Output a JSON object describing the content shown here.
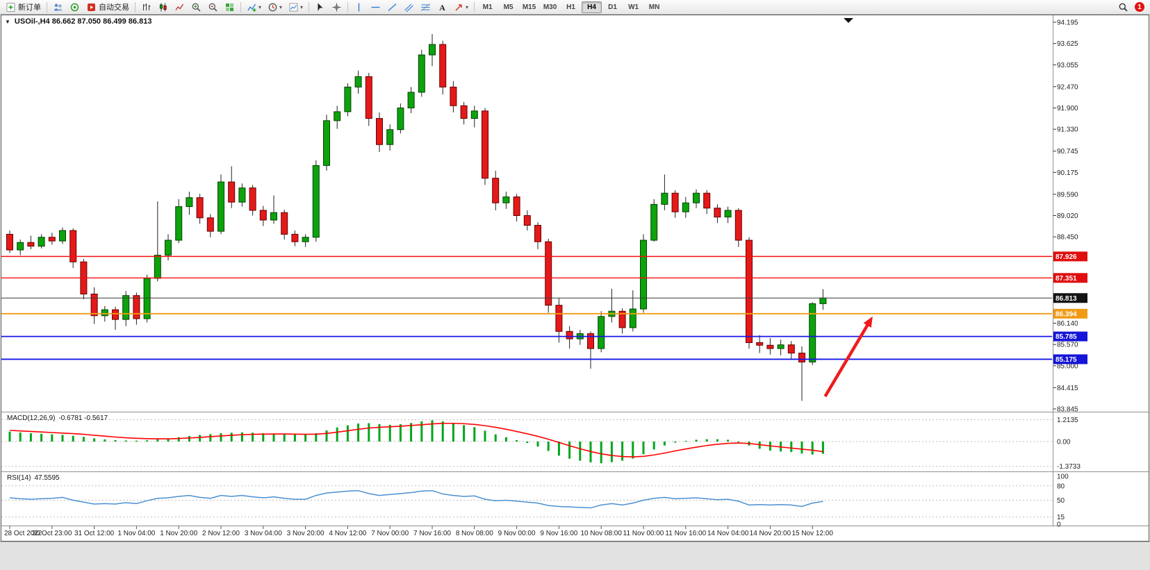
{
  "toolbar": {
    "new_order": "新订单",
    "autotrading": "自动交易",
    "timeframes": [
      "M1",
      "M5",
      "M15",
      "M30",
      "H1",
      "H4",
      "D1",
      "W1",
      "MN"
    ],
    "active_timeframe": "H4",
    "notification_count": "1"
  },
  "chart_data": {
    "type": "candlestick",
    "symbol": "USOil-",
    "timeframe": "H4",
    "header": "USOil-,H4  86.662 87.050 86.499 86.813",
    "ohlc": {
      "open": 86.662,
      "high": 87.05,
      "low": 86.499,
      "close": 86.813
    },
    "up_color": "#0ca30c",
    "down_color": "#e51919",
    "y_axis": {
      "max": 94.195,
      "min": 83.845,
      "ticks": [
        "94.195",
        "93.625",
        "93.055",
        "92.470",
        "91.900",
        "91.330",
        "90.745",
        "90.175",
        "89.590",
        "89.020",
        "88.450",
        "86.140",
        "85.570",
        "85.000",
        "84.415",
        "83.845"
      ]
    },
    "price_badges": [
      {
        "label": "87.926",
        "color": "#e00e0e"
      },
      {
        "label": "87.351",
        "color": "#e00e0e"
      },
      {
        "label": "86.813",
        "color": "#141414"
      },
      {
        "label": "86.394",
        "color": "#ef9b16"
      },
      {
        "label": "85.785",
        "color": "#1515d8"
      },
      {
        "label": "85.175",
        "color": "#1515d8"
      }
    ],
    "price_lines": [
      {
        "value": 87.926,
        "color": "#f50f0f",
        "width": 1.4
      },
      {
        "value": 87.351,
        "color": "#f50f0f",
        "width": 1.4
      },
      {
        "value": 86.813,
        "color": "#3a3a3a",
        "width": 1
      },
      {
        "value": 86.394,
        "color": "#ef9b16",
        "width": 1.8
      },
      {
        "value": 85.785,
        "color": "#1515e8",
        "width": 1.8
      },
      {
        "value": 85.175,
        "color": "#1515e8",
        "width": 1.8
      }
    ],
    "candles": [
      [
        88.52,
        88.62,
        88.02,
        88.1
      ],
      [
        88.1,
        88.38,
        87.96,
        88.3
      ],
      [
        88.3,
        88.48,
        88.12,
        88.2
      ],
      [
        88.2,
        88.52,
        88.14,
        88.44
      ],
      [
        88.44,
        88.56,
        88.24,
        88.34
      ],
      [
        88.34,
        88.7,
        88.26,
        88.62
      ],
      [
        88.62,
        88.68,
        87.62,
        87.78
      ],
      [
        87.78,
        87.86,
        86.78,
        86.92
      ],
      [
        86.92,
        87.1,
        86.12,
        86.34
      ],
      [
        86.34,
        86.6,
        86.18,
        86.5
      ],
      [
        86.5,
        86.58,
        85.96,
        86.24
      ],
      [
        86.24,
        87.0,
        86.06,
        86.88
      ],
      [
        86.88,
        86.96,
        86.1,
        86.26
      ],
      [
        86.26,
        87.44,
        86.16,
        87.34
      ],
      [
        87.34,
        89.4,
        87.26,
        87.96
      ],
      [
        87.96,
        88.52,
        87.82,
        88.36
      ],
      [
        88.36,
        89.46,
        88.28,
        89.26
      ],
      [
        89.26,
        89.66,
        89.04,
        89.5
      ],
      [
        89.5,
        89.6,
        88.8,
        88.96
      ],
      [
        88.96,
        89.06,
        88.44,
        88.6
      ],
      [
        88.6,
        90.12,
        88.52,
        89.92
      ],
      [
        89.92,
        90.34,
        89.22,
        89.38
      ],
      [
        89.38,
        89.88,
        89.26,
        89.76
      ],
      [
        89.76,
        89.84,
        89.02,
        89.16
      ],
      [
        89.16,
        89.28,
        88.74,
        88.9
      ],
      [
        88.9,
        89.56,
        88.8,
        89.1
      ],
      [
        89.1,
        89.18,
        88.38,
        88.52
      ],
      [
        88.52,
        88.62,
        88.2,
        88.32
      ],
      [
        88.32,
        88.52,
        88.18,
        88.44
      ],
      [
        88.44,
        90.5,
        88.32,
        90.36
      ],
      [
        90.36,
        91.72,
        90.22,
        91.56
      ],
      [
        91.56,
        91.96,
        91.34,
        91.8
      ],
      [
        91.8,
        92.56,
        91.68,
        92.46
      ],
      [
        92.46,
        92.9,
        92.28,
        92.74
      ],
      [
        92.74,
        92.84,
        91.42,
        91.62
      ],
      [
        91.62,
        91.78,
        90.72,
        90.92
      ],
      [
        90.92,
        91.46,
        90.76,
        91.32
      ],
      [
        91.32,
        92.02,
        91.22,
        91.9
      ],
      [
        91.9,
        92.46,
        91.76,
        92.32
      ],
      [
        92.32,
        93.46,
        92.2,
        93.32
      ],
      [
        93.32,
        93.88,
        93.02,
        93.6
      ],
      [
        93.6,
        93.7,
        92.26,
        92.46
      ],
      [
        92.46,
        92.62,
        91.78,
        91.96
      ],
      [
        91.96,
        92.06,
        91.46,
        91.62
      ],
      [
        91.62,
        91.96,
        91.38,
        91.82
      ],
      [
        91.82,
        91.9,
        89.84,
        90.02
      ],
      [
        90.02,
        90.22,
        89.16,
        89.36
      ],
      [
        89.36,
        89.66,
        89.2,
        89.52
      ],
      [
        89.52,
        89.6,
        88.86,
        89.02
      ],
      [
        89.02,
        89.16,
        88.62,
        88.76
      ],
      [
        88.76,
        88.84,
        88.12,
        88.32
      ],
      [
        88.32,
        88.4,
        86.42,
        86.62
      ],
      [
        86.62,
        86.82,
        85.62,
        85.92
      ],
      [
        85.92,
        86.06,
        85.46,
        85.72
      ],
      [
        85.72,
        85.96,
        85.56,
        85.86
      ],
      [
        85.86,
        85.92,
        84.92,
        85.46
      ],
      [
        85.46,
        86.46,
        85.36,
        86.32
      ],
      [
        86.32,
        87.06,
        86.16,
        86.46
      ],
      [
        86.46,
        86.54,
        85.86,
        86.02
      ],
      [
        86.02,
        87.02,
        85.92,
        86.52
      ],
      [
        86.52,
        88.52,
        86.42,
        88.36
      ],
      [
        88.36,
        89.46,
        88.32,
        89.32
      ],
      [
        89.32,
        90.12,
        89.16,
        89.62
      ],
      [
        89.62,
        89.7,
        88.96,
        89.12
      ],
      [
        89.12,
        89.52,
        88.96,
        89.36
      ],
      [
        89.36,
        89.72,
        89.22,
        89.62
      ],
      [
        89.62,
        89.7,
        89.06,
        89.22
      ],
      [
        89.22,
        89.32,
        88.82,
        88.98
      ],
      [
        88.98,
        89.26,
        88.82,
        89.16
      ],
      [
        89.16,
        89.22,
        88.18,
        88.36
      ],
      [
        88.36,
        88.44,
        85.46,
        85.62
      ],
      [
        85.62,
        85.82,
        85.34,
        85.55
      ],
      [
        85.55,
        85.74,
        85.3,
        85.46
      ],
      [
        85.46,
        85.7,
        85.28,
        85.56
      ],
      [
        85.56,
        85.66,
        85.16,
        85.34
      ],
      [
        85.34,
        85.52,
        84.06,
        85.1
      ],
      [
        85.1,
        86.7,
        85.02,
        86.662
      ],
      [
        86.662,
        87.05,
        86.499,
        86.813
      ]
    ],
    "x_labels": [
      [
        0,
        "28 Oct 2022"
      ],
      [
        4,
        "30 Oct 23:00"
      ],
      [
        8,
        "31 Oct 12:00"
      ],
      [
        12,
        "1 Nov 04:00"
      ],
      [
        16,
        "1 Nov 20:00"
      ],
      [
        20,
        "2 Nov 12:00"
      ],
      [
        24,
        "3 Nov 04:00"
      ],
      [
        28,
        "3 Nov 20:00"
      ],
      [
        32,
        "4 Nov 12:00"
      ],
      [
        36,
        "7 Nov 00:00"
      ],
      [
        40,
        "7 Nov 16:00"
      ],
      [
        44,
        "8 Nov 08:00"
      ],
      [
        48,
        "9 Nov 00:00"
      ],
      [
        52,
        "9 Nov 16:00"
      ],
      [
        56,
        "10 Nov 08:00"
      ],
      [
        60,
        "11 Nov 00:00"
      ],
      [
        64,
        "11 Nov 16:00"
      ],
      [
        68,
        "14 Nov 04:00"
      ],
      [
        72,
        "14 Nov 20:00"
      ],
      [
        76,
        "15 Nov 12:00"
      ]
    ],
    "macd": {
      "name": "MACD(12,26,9)",
      "value_text": "-0.6781 -0.5617",
      "scale_labels": [
        "1.2135",
        "0.00",
        "-1.3733"
      ],
      "scale_values": [
        1.2135,
        0,
        -1.3733
      ],
      "histogram_color": "#00a61b",
      "signal_color": "#ff0000",
      "histogram": [
        0.55,
        0.5,
        0.46,
        0.43,
        0.4,
        0.37,
        0.32,
        0.26,
        0.18,
        0.12,
        0.08,
        0.06,
        0.05,
        0.07,
        0.12,
        0.17,
        0.24,
        0.31,
        0.37,
        0.41,
        0.46,
        0.49,
        0.51,
        0.49,
        0.46,
        0.43,
        0.41,
        0.39,
        0.38,
        0.46,
        0.62,
        0.78,
        0.9,
        1.0,
        1.02,
        0.97,
        0.93,
        0.96,
        1.03,
        1.12,
        1.18,
        1.12,
        1.02,
        0.91,
        0.8,
        0.6,
        0.4,
        0.24,
        0.08,
        -0.08,
        -0.28,
        -0.52,
        -0.78,
        -0.95,
        -1.06,
        -1.15,
        -1.2,
        -1.14,
        -1.06,
        -0.94,
        -0.7,
        -0.44,
        -0.22,
        -0.06,
        0.04,
        0.1,
        0.13,
        0.13,
        0.1,
        0.0,
        -0.22,
        -0.4,
        -0.5,
        -0.55,
        -0.58,
        -0.66,
        -0.72,
        -0.6781
      ],
      "signal": [
        0.62,
        0.59,
        0.56,
        0.53,
        0.5,
        0.47,
        0.44,
        0.4,
        0.35,
        0.3,
        0.25,
        0.21,
        0.18,
        0.16,
        0.15,
        0.15,
        0.17,
        0.2,
        0.23,
        0.27,
        0.31,
        0.35,
        0.38,
        0.4,
        0.41,
        0.42,
        0.42,
        0.41,
        0.4,
        0.41,
        0.45,
        0.52,
        0.6,
        0.68,
        0.75,
        0.79,
        0.82,
        0.85,
        0.89,
        0.93,
        0.98,
        1.01,
        1.01,
        0.99,
        0.95,
        0.88,
        0.79,
        0.68,
        0.56,
        0.43,
        0.29,
        0.13,
        -0.05,
        -0.23,
        -0.4,
        -0.55,
        -0.68,
        -0.77,
        -0.83,
        -0.85,
        -0.82,
        -0.74,
        -0.64,
        -0.52,
        -0.41,
        -0.31,
        -0.22,
        -0.15,
        -0.1,
        -0.08,
        -0.11,
        -0.17,
        -0.24,
        -0.3,
        -0.36,
        -0.42,
        -0.48,
        -0.5617
      ]
    },
    "rsi": {
      "name": "RSI(14)",
      "value_text": "47.5595",
      "levels": [
        100,
        80,
        50,
        15,
        0
      ],
      "color": "#4a90d2",
      "values": [
        55,
        53,
        52,
        53,
        54,
        56,
        50,
        46,
        42,
        43,
        42,
        45,
        43,
        49,
        54,
        55,
        58,
        60,
        56,
        54,
        60,
        58,
        60,
        57,
        55,
        57,
        54,
        52,
        52,
        60,
        65,
        67,
        69,
        70,
        64,
        60,
        62,
        64,
        66,
        69,
        70,
        63,
        60,
        58,
        59,
        52,
        49,
        50,
        48,
        46,
        44,
        39,
        37,
        36,
        35,
        34,
        40,
        43,
        40,
        44,
        50,
        54,
        56,
        53,
        54,
        55,
        53,
        51,
        52,
        48,
        40,
        41,
        40,
        41,
        40,
        37,
        44,
        47.56
      ]
    },
    "arrow": {
      "from_index": 77.2,
      "from_price": 84.18,
      "to_index": 81.7,
      "to_price": 86.32,
      "color": "#ee1c1c"
    }
  }
}
